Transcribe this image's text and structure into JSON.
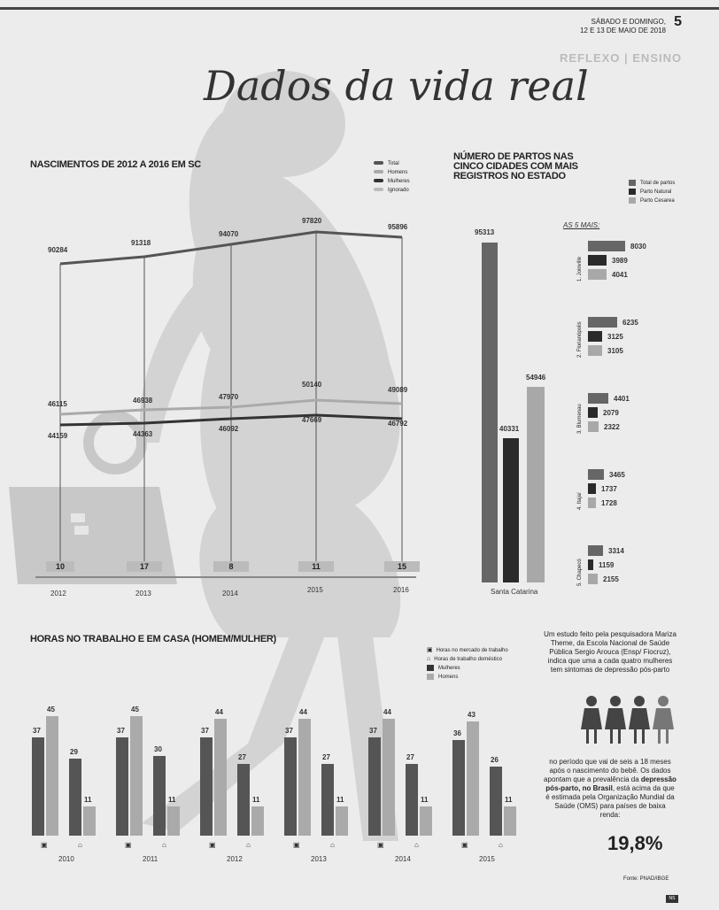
{
  "header": {
    "date_line1": "SÁBADO E DOMINGO,",
    "date_line2": "12 E 13 DE MAIO DE 2018",
    "page_number": "5",
    "ghost_text": "REFLEXO | ENSINO"
  },
  "title": "Dados da vida real",
  "births": {
    "heading": "NASCIMENTOS DE 2012 A 2016 EM SC",
    "legend": [
      "Total",
      "Homens",
      "Mulheres",
      "Ignorado"
    ],
    "years": [
      "2012",
      "2013",
      "2014",
      "2015",
      "2016"
    ],
    "total": [
      "90284",
      "91318",
      "94070",
      "97820",
      "95896"
    ],
    "homens": [
      "46115",
      "46938",
      "47970",
      "50140",
      "49089"
    ],
    "mulheres": [
      "44159",
      "44363",
      "46092",
      "47669",
      "46792"
    ],
    "ignorado": [
      "10",
      "17",
      "8",
      "11",
      "15"
    ]
  },
  "partos": {
    "heading_l1": "NÚMERO DE PARTOS NAS",
    "heading_l2": "CINCO CIDADES COM MAIS",
    "heading_l3": "REGISTROS NO ESTADO",
    "legend": [
      "Total de partos",
      "Parto Natural",
      "Parto Cesarea"
    ],
    "sc_label": "Santa Catarina",
    "sc_values": [
      "95313",
      "40331",
      "54946"
    ],
    "top5_label": "AS 5 MAIS:",
    "cities": [
      {
        "name": "1. Joinville",
        "values": [
          "8030",
          "3989",
          "4041"
        ]
      },
      {
        "name": "2. Florianópolis",
        "values": [
          "6235",
          "3125",
          "3105"
        ]
      },
      {
        "name": "3. Blumenau",
        "values": [
          "4401",
          "2079",
          "2322"
        ]
      },
      {
        "name": "4. Itajaí",
        "values": [
          "3465",
          "1737",
          "1728"
        ]
      },
      {
        "name": "5. Chapecó",
        "values": [
          "3314",
          "1159",
          "2155"
        ]
      }
    ]
  },
  "hours": {
    "heading": "HORAS NO TRABALHO E EM CASA (HOMEM/MULHER)",
    "legend": [
      "Horas no mercado de trabalho",
      "Horas de trabalho doméstico",
      "Mulheres",
      "Homens"
    ],
    "years": [
      "2010",
      "2011",
      "2012",
      "2013",
      "2014",
      "2015"
    ],
    "groups": [
      {
        "w_work": "37",
        "m_work": "45",
        "w_home": "29",
        "m_home": "11"
      },
      {
        "w_work": "37",
        "m_work": "45",
        "w_home": "30",
        "m_home": "11"
      },
      {
        "w_work": "37",
        "m_work": "44",
        "w_home": "27",
        "m_home": "11"
      },
      {
        "w_work": "37",
        "m_work": "44",
        "w_home": "27",
        "m_home": "11"
      },
      {
        "w_work": "37",
        "m_work": "44",
        "w_home": "27",
        "m_home": "11"
      },
      {
        "w_work": "36",
        "m_work": "43",
        "w_home": "26",
        "m_home": "11"
      }
    ]
  },
  "study": {
    "text1": "Um estudo feito pela pesquisadora Mariza Theme, da Escola Nacional de Saúde Pública Sergio Arouca (Ensp/ Fiocruz), indica que uma a cada quatro mulheres tem sintomas de depressão pós-parto",
    "text2a": "no período que vai de seis a 18 meses após o nascimento do bebê. Os dados apontam que a prevalência da",
    "text2b": "depressão pós-parto, no Brasil",
    "text2c": ", está acima da que é estimada pela Organização Mundial da Saúde (OMS) para países de baixa renda:",
    "big_number": "19,8%",
    "source": "Fonte: PNAD/IBGE",
    "badge": "NS"
  },
  "colors": {
    "total": "#555555",
    "homens": "#aaaaaa",
    "mulheres": "#333333",
    "ignorado": "#bbbbbb",
    "partos_total": "#666666",
    "partos_natural": "#2a2a2a",
    "partos_cesarea": "#a8a8a8"
  }
}
